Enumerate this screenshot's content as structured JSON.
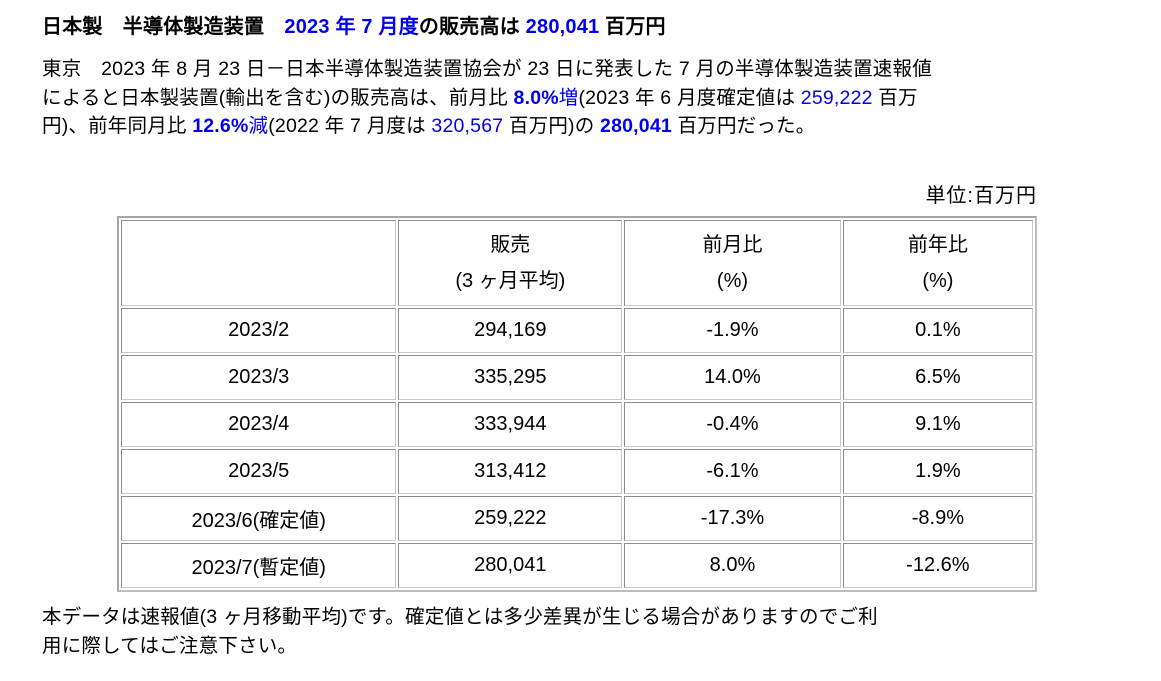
{
  "colors": {
    "accent_blue": "#0000ee",
    "text": "#000000",
    "table_border_outer": "#a6a6a6",
    "table_border_cell": "#8c8c8c"
  },
  "title": {
    "runs": [
      {
        "t": "日本製　半導体製造装置　",
        "c": "bold"
      },
      {
        "t": "2023 年 7 月度",
        "c": "bold blue"
      },
      {
        "t": "の販売高は ",
        "c": "bold"
      },
      {
        "t": "280,041",
        "c": "bold blue"
      },
      {
        "t": " 百万円",
        "c": "bold"
      }
    ]
  },
  "body": {
    "runs": [
      {
        "t": "東京　2023 年 8 月 23 日－日本半導体製造装置協会が 23 日に発表した 7 月の半導体製造装置速報値\nによると日本製装置(輸出を含む)の販売高は、前月比 ",
        "c": ""
      },
      {
        "t": "8.0%",
        "c": "bold blue"
      },
      {
        "t": "増",
        "c": "blue"
      },
      {
        "t": "(2023 年 6 月度確定値は ",
        "c": ""
      },
      {
        "t": "259,222",
        "c": "blue"
      },
      {
        "t": " 百万\n円)、前年同月比 ",
        "c": ""
      },
      {
        "t": "12.6%",
        "c": "bold blue"
      },
      {
        "t": "減",
        "c": "blue"
      },
      {
        "t": "(2022 年 7 月度は ",
        "c": ""
      },
      {
        "t": "320,567",
        "c": "blue"
      },
      {
        "t": " 百万円)の ",
        "c": ""
      },
      {
        "t": "280,041",
        "c": "bold blue"
      },
      {
        "t": " 百万円だった。",
        "c": ""
      }
    ]
  },
  "unit_label": "単位:百万円",
  "table": {
    "headers": [
      "",
      "販売\n(3 ヶ月平均)",
      "前月比\n(%)",
      "前年比\n(%)"
    ],
    "rows": [
      [
        "2023/2",
        "294,169",
        "-1.9%",
        "0.1%"
      ],
      [
        "2023/3",
        "335,295",
        "14.0%",
        "6.5%"
      ],
      [
        "2023/4",
        "333,944",
        "-0.4%",
        "9.1%"
      ],
      [
        "2023/5",
        "313,412",
        "-6.1%",
        "1.9%"
      ],
      [
        "2023/6(確定値)",
        "259,222",
        "-17.3%",
        "-8.9%"
      ],
      [
        "2023/7(暫定値)",
        "280,041",
        "8.0%",
        "-12.6%"
      ]
    ]
  },
  "footer_note": {
    "runs": [
      {
        "t": "本データは速報値(3 ヶ月移動平均)です。確定値とは多少差異が生じる場合がありますのでご利\n用に際してはご注意下さい。",
        "c": ""
      }
    ]
  }
}
